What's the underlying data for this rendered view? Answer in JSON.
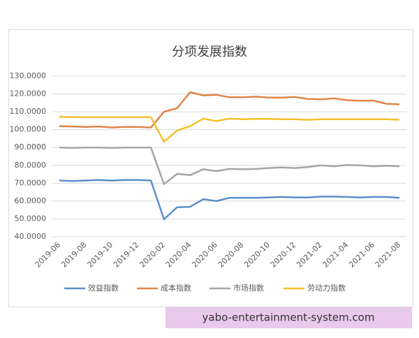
{
  "chart_data": {
    "type": "line",
    "title": "分项发展指数",
    "categories": [
      "2019-06",
      null,
      "2019-08",
      null,
      "2019-10",
      null,
      "2019-12",
      null,
      "2020-02",
      null,
      "2020-04",
      null,
      "2020-06",
      null,
      "2020-08",
      null,
      "2020-10",
      null,
      "2020-12",
      null,
      "2021-02",
      null,
      "2021-04",
      null,
      "2021-06",
      null,
      "2021-08"
    ],
    "series": [
      {
        "name": "效益指数",
        "color": "#5b8fc7",
        "values": [
          71.5,
          71.2,
          71.5,
          71.8,
          71.5,
          71.8,
          71.8,
          71.5,
          49.8,
          56.5,
          56.8,
          61,
          60,
          61.8,
          61.8,
          61.8,
          62,
          62.3,
          62,
          62,
          62.5,
          62.5,
          62.3,
          62,
          62.3,
          62.3,
          61.8
        ]
      },
      {
        "name": "成本指数",
        "color": "#e0844a",
        "values": [
          102,
          101.8,
          101.5,
          101.8,
          101.2,
          101.5,
          101.5,
          101.2,
          110,
          112,
          121,
          119.2,
          119.5,
          118.2,
          118.2,
          118.5,
          118,
          118,
          118.3,
          117.2,
          117,
          117.5,
          116.5,
          116.2,
          116.3,
          114.5,
          114.2
        ]
      },
      {
        "name": "市场指数",
        "color": "#a5a5a5",
        "values": [
          90,
          89.8,
          90,
          90,
          89.8,
          90,
          90,
          90,
          69.5,
          75.2,
          74.5,
          77.8,
          76.8,
          78,
          77.8,
          78,
          78.5,
          78.8,
          78.5,
          79,
          80,
          79.5,
          80.2,
          80,
          79.5,
          79.8,
          79.5
        ]
      },
      {
        "name": "劳动力指数",
        "color": "#f5c02c",
        "values": [
          107.2,
          107,
          107,
          107,
          107,
          107,
          107,
          107,
          93.2,
          99.5,
          102,
          106.2,
          104.8,
          106.2,
          105.8,
          106,
          106,
          105.8,
          105.8,
          105.5,
          105.8,
          105.8,
          105.8,
          105.8,
          105.8,
          105.8,
          105.5
        ]
      }
    ],
    "ylim": [
      40,
      130
    ],
    "yticks": [
      {
        "value": 40,
        "label": "40.0000"
      },
      {
        "value": 50,
        "label": "50.0000"
      },
      {
        "value": 60,
        "label": "60.0000"
      },
      {
        "value": 70,
        "label": "70.0000"
      },
      {
        "value": 80,
        "label": "80.0000"
      },
      {
        "value": 90,
        "label": "90.0000"
      },
      {
        "value": 100,
        "label": "100.0000"
      },
      {
        "value": 110,
        "label": "110.0000"
      },
      {
        "value": 120,
        "label": "120.0000"
      },
      {
        "value": 130,
        "label": "130.0000"
      }
    ],
    "grid": true,
    "legend": "bottom"
  },
  "watermark": "yabo-entertainment-system.com"
}
